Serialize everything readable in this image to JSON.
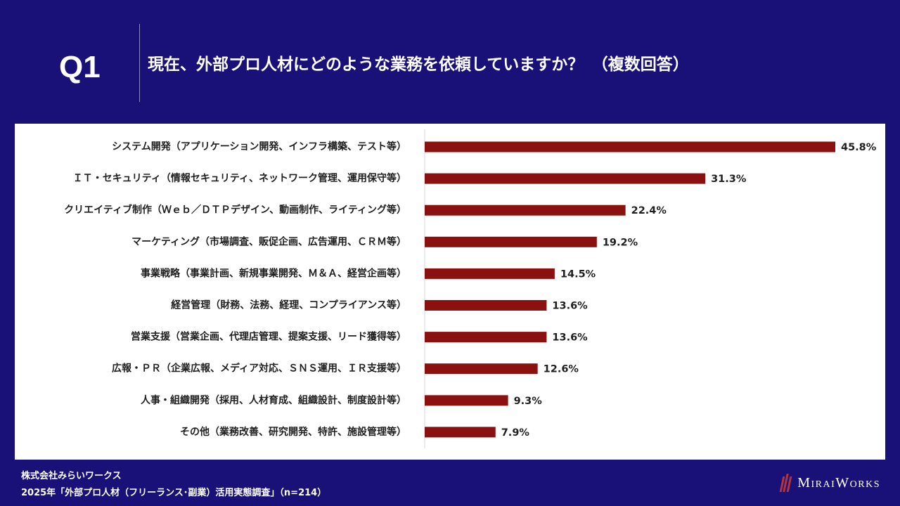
{
  "header": {
    "q_label": "Q1",
    "question": "現在、外部プロ人材にどのような業務を依頼していますか？　（複数回答）"
  },
  "chart_data": {
    "type": "bar",
    "orientation": "horizontal",
    "categories": [
      "システム開発（アプリケーション開発、インフラ構築、テスト等）",
      "ＩＴ・セキュリティ（情報セキュリティ、ネットワーク管理、運用保守等）",
      "クリエイティブ制作（Ｗｅｂ／ＤＴＰデザイン、動画制作、ライティング等）",
      "マーケティング（市場調査、販促企画、広告運用、ＣＲＭ等）",
      "事業戦略（事業計画、新規事業開発、Ｍ＆Ａ、経営企画等）",
      "経営管理（財務、法務、経理、コンプライアンス等）",
      "営業支援（営業企画、代理店管理、提案支援、リード獲得等）",
      "広報・ＰＲ（企業広報、メディア対応、ＳＮＳ運用、ＩＲ支援等）",
      "人事・組織開発（採用、人材育成、組織設計、制度設計等）",
      "その他（業務改善、研究開発、特許、施設管理等）"
    ],
    "values": [
      45.8,
      31.3,
      22.4,
      19.2,
      14.5,
      13.6,
      13.6,
      12.6,
      9.3,
      7.9
    ],
    "value_labels": [
      "45.8%",
      "31.3%",
      "22.4%",
      "19.2%",
      "14.5%",
      "13.6%",
      "13.6%",
      "12.6%",
      "9.3%",
      "7.9%"
    ],
    "unit": "%",
    "bar_color": "#8b1010",
    "xlim": [
      0,
      45.8
    ]
  },
  "footer": {
    "company": "株式会社みらいワークス",
    "survey": "2025年「外部プロ人材（フリーランス･副業）活用実態調査」（n=214）",
    "brand": "MiraiWorks",
    "brand_color": "#b2353a"
  }
}
